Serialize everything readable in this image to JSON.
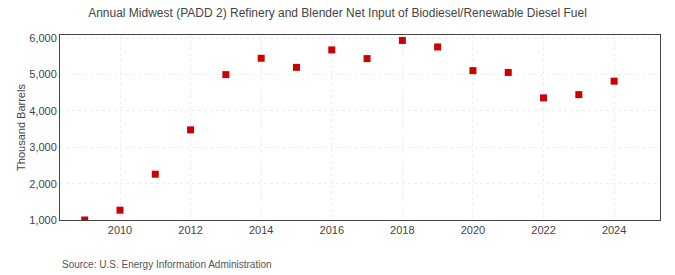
{
  "chart_data": {
    "type": "scatter",
    "title": "Annual Midwest (PADD 2) Refinery and Blender Net Input of Biodiesel/Renewable Diesel Fuel",
    "y_label": "Thousand Barrels",
    "annotations": [
      "Source: U.S. Energy Information Administration"
    ],
    "x": [
      2009,
      2010,
      2011,
      2012,
      2013,
      2014,
      2015,
      2016,
      2017,
      2018,
      2019,
      2020,
      2021,
      2022,
      2023,
      2024
    ],
    "values": [
      1000,
      1270,
      2260,
      3480,
      5000,
      5450,
      5200,
      5680,
      5440,
      5940,
      5760,
      5110,
      5060,
      4360,
      4450,
      4820
    ],
    "color": "#CC0000",
    "marker": "square",
    "xlim": [
      2008.3,
      2025.3
    ],
    "xticks": [
      2010,
      2012,
      2014,
      2016,
      2018,
      2020,
      2022,
      2024
    ],
    "ylim": [
      1000,
      6090
    ],
    "yticks": [
      {
        "value": 1000,
        "label": "1,000"
      },
      {
        "value": 2000,
        "label": "2,000"
      },
      {
        "value": 3000,
        "label": "3,000"
      },
      {
        "value": 4000,
        "label": "4,000"
      },
      {
        "value": 5000,
        "label": "5,000"
      },
      {
        "value": 6000,
        "label": "6,000"
      }
    ],
    "grid": true
  }
}
